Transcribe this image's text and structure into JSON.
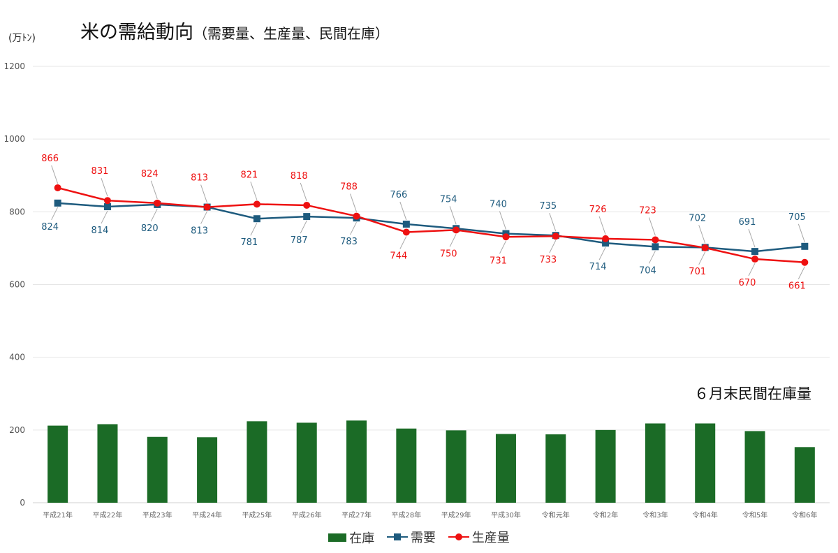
{
  "title": "米の需給動向",
  "subtitle": "（需要量、生産量、民間在庫）",
  "unit_label": "(万ﾄﾝ)",
  "inventory_title": "６月末民間在庫量",
  "colors": {
    "inventory": "#1b6b26",
    "demand": "#1e5b7e",
    "production": "#ee1111"
  },
  "chart_data": {
    "type": "bar",
    "categories": [
      "平成21年",
      "平成22年",
      "平成23年",
      "平成24年",
      "平成25年",
      "平成26年",
      "平成27年",
      "平成28年",
      "平成29年",
      "平成30年",
      "令和元年",
      "令和2年",
      "令和3年",
      "令和4年",
      "令和5年",
      "令和6年"
    ],
    "ylim": [
      0,
      1200
    ],
    "yticks": [
      0,
      200,
      400,
      600,
      800,
      1000,
      1200
    ],
    "grid": true,
    "legend": "bottom",
    "series": [
      {
        "name": "在庫",
        "type": "bar",
        "values": [
          212,
          216,
          181,
          180,
          224,
          220,
          226,
          204,
          199,
          189,
          188,
          200,
          218,
          218,
          197,
          153
        ]
      },
      {
        "name": "需要",
        "type": "line",
        "marker": "square",
        "values": [
          824,
          814,
          820,
          813,
          781,
          787,
          783,
          766,
          754,
          740,
          735,
          714,
          704,
          702,
          691,
          705
        ]
      },
      {
        "name": "生産量",
        "type": "line",
        "marker": "circle",
        "values": [
          866,
          831,
          824,
          813,
          821,
          818,
          788,
          744,
          750,
          731,
          733,
          726,
          723,
          701,
          670,
          661
        ]
      }
    ]
  }
}
